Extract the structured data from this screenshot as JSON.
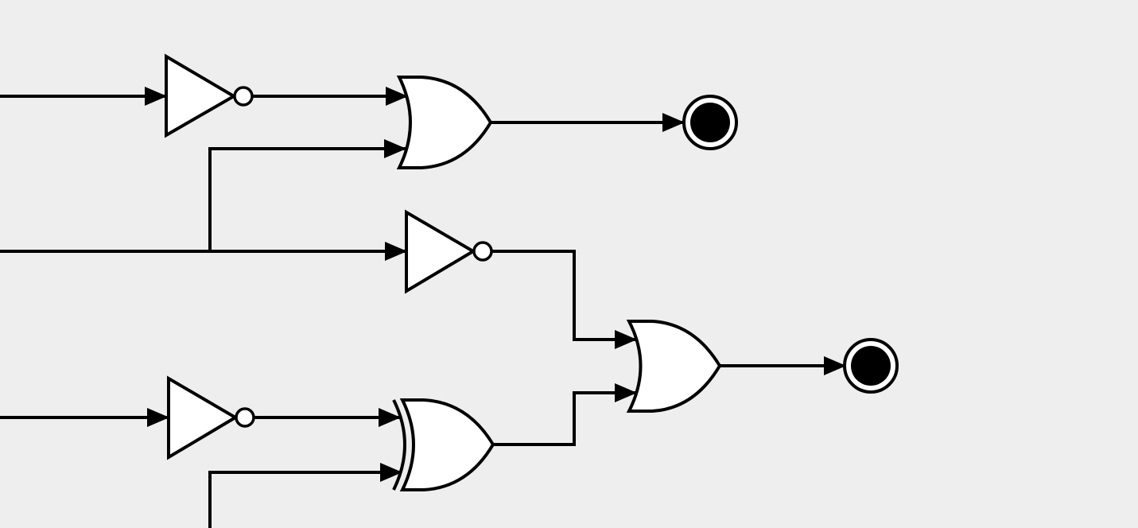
{
  "diagram": {
    "kind": "logic-circuit",
    "colors": {
      "background": "#eeeeee",
      "stroke": "#000000",
      "gate_fill": "#ffffff",
      "output_dot": "#000000"
    },
    "gates": [
      {
        "id": "not-1",
        "type": "NOT"
      },
      {
        "id": "not-2",
        "type": "NOT"
      },
      {
        "id": "not-3",
        "type": "NOT"
      },
      {
        "id": "or-1",
        "type": "OR"
      },
      {
        "id": "or-2",
        "type": "OR"
      },
      {
        "id": "xor-1",
        "type": "XOR"
      }
    ],
    "inputs": [
      "input-1",
      "input-2",
      "input-3",
      "input-4"
    ],
    "outputs": [
      "output-1",
      "output-2"
    ],
    "connections": [
      [
        "input-1",
        "not-1"
      ],
      [
        "not-1",
        "or-1"
      ],
      [
        "input-2",
        "or-1"
      ],
      [
        "input-2",
        "not-2"
      ],
      [
        "or-1",
        "output-1"
      ],
      [
        "input-3",
        "not-3"
      ],
      [
        "not-3",
        "xor-1"
      ],
      [
        "input-4",
        "xor-1"
      ],
      [
        "not-2",
        "or-2"
      ],
      [
        "xor-1",
        "or-2"
      ],
      [
        "or-2",
        "output-2"
      ]
    ]
  }
}
